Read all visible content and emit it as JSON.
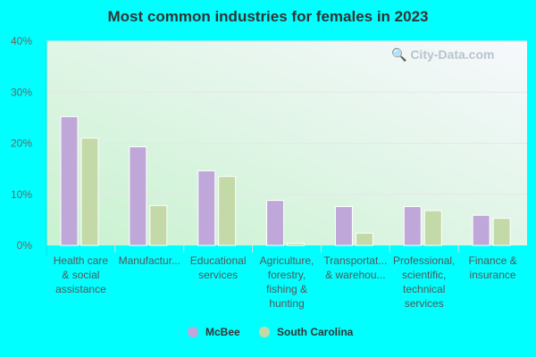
{
  "chart_data": {
    "type": "bar",
    "title": "Most common industries for females in 2023",
    "categories": [
      [
        "Health care",
        "& social",
        "assistance"
      ],
      [
        "Manufactur..."
      ],
      [
        "Educational",
        "services"
      ],
      [
        "Agriculture,",
        "forestry,",
        "fishing &",
        "hunting"
      ],
      [
        "Transportat...",
        "& warehou..."
      ],
      [
        "Professional,",
        "scientific,",
        "technical",
        "services"
      ],
      [
        "Finance &",
        "insurance"
      ]
    ],
    "series": [
      {
        "name": "McBee",
        "color": "#bfa8d9",
        "values": [
          25.2,
          19.3,
          14.6,
          8.8,
          7.6,
          7.6,
          5.9
        ]
      },
      {
        "name": "South Carolina",
        "color": "#c4d9a8",
        "values": [
          21.0,
          7.8,
          13.5,
          0.4,
          2.4,
          6.8,
          5.3
        ]
      }
    ],
    "ylim": [
      0,
      40
    ],
    "yticks": [
      "0%",
      "10%",
      "20%",
      "30%",
      "40%"
    ],
    "grid": true,
    "legend": "bottom",
    "watermark": "City-Data.com"
  }
}
